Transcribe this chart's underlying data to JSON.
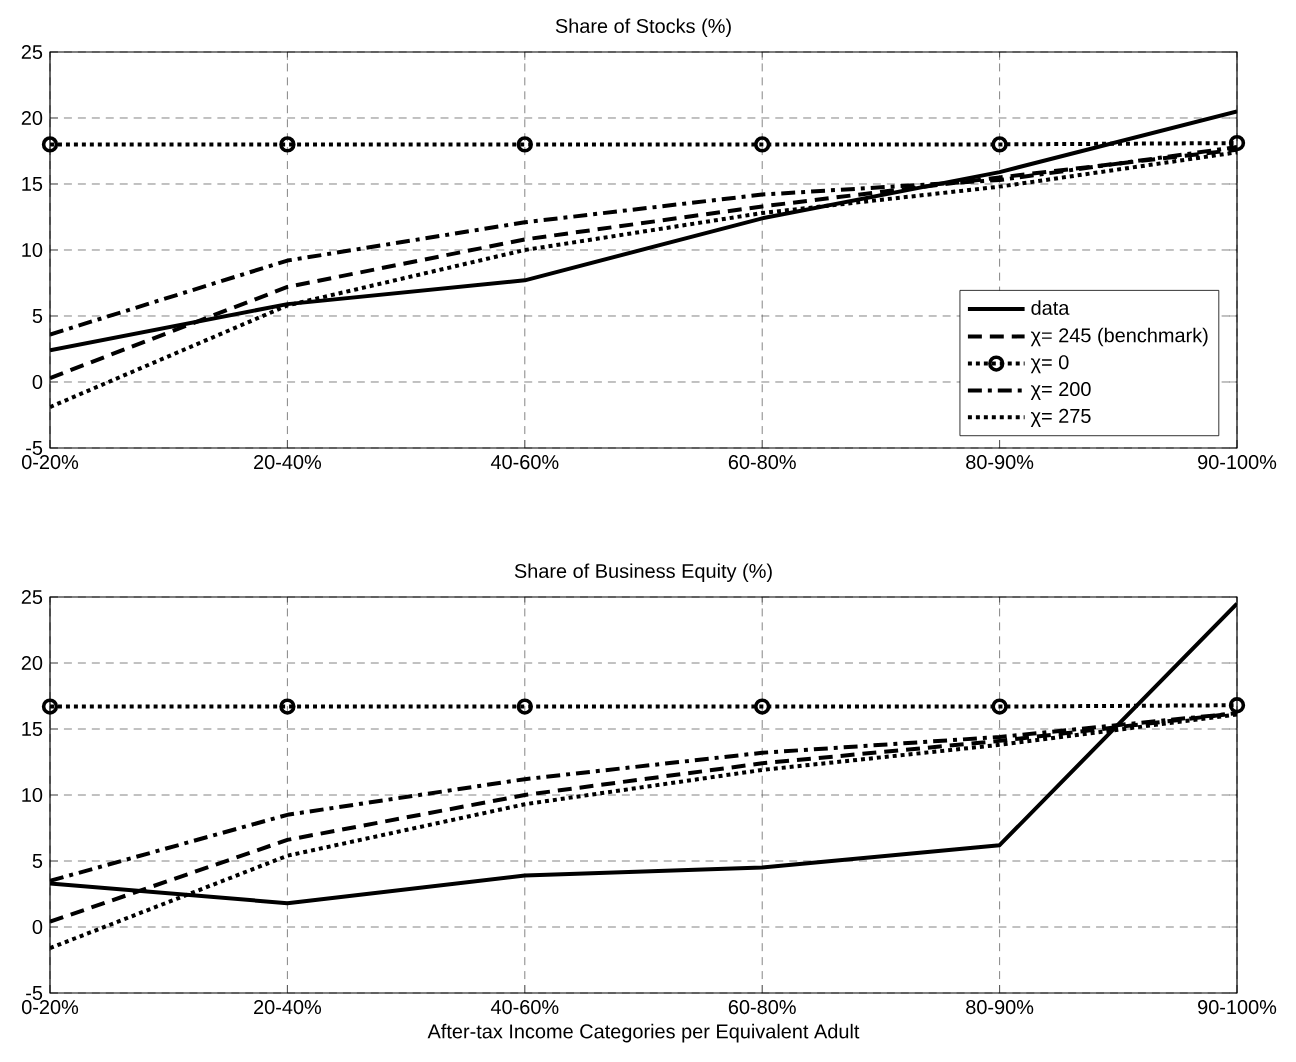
{
  "chart_data": [
    {
      "type": "line",
      "title": "Share of Stocks (%)",
      "categories": [
        "0-20%",
        "20-40%",
        "40-60%",
        "60-80%",
        "80-90%",
        "90-100%"
      ],
      "ylim": [
        -5,
        25
      ],
      "yticks": [
        -5,
        0,
        5,
        10,
        15,
        20,
        25
      ],
      "grid": true,
      "legend": "bottom right",
      "series": [
        {
          "name": "data",
          "color": "#000000",
          "line_style": "solid",
          "values": [
            2.4,
            5.9,
            7.7,
            12.4,
            15.9,
            20.5
          ]
        },
        {
          "name": "χ= 245 (benchmark)",
          "color": "#000000",
          "line_style": "dashed",
          "values": [
            0.3,
            7.2,
            10.8,
            13.3,
            15.5,
            17.6
          ]
        },
        {
          "name": "χ= 0",
          "color": "#000000",
          "line_style": "dotted",
          "marker": "circle",
          "values": [
            18.0,
            18.0,
            18.0,
            18.0,
            18.0,
            18.1
          ]
        },
        {
          "name": "χ= 200",
          "color": "#000000",
          "line_style": "dashdot",
          "values": [
            3.6,
            9.2,
            12.1,
            14.2,
            15.3,
            17.8
          ]
        },
        {
          "name": "χ= 275",
          "color": "#000000",
          "line_style": "dotted",
          "values": [
            -1.9,
            5.8,
            10.0,
            12.8,
            14.8,
            17.4
          ]
        }
      ]
    },
    {
      "type": "line",
      "title": "Share of Business Equity (%)",
      "xlabel": "After-tax Income Categories per Equivalent Adult",
      "categories": [
        "0-20%",
        "20-40%",
        "40-60%",
        "60-80%",
        "80-90%",
        "90-100%"
      ],
      "ylim": [
        -5,
        25
      ],
      "yticks": [
        -5,
        0,
        5,
        10,
        15,
        20,
        25
      ],
      "grid": true,
      "series": [
        {
          "color": "#000000",
          "line_style": "solid",
          "values": [
            3.3,
            1.8,
            3.9,
            4.5,
            6.2,
            24.5
          ]
        },
        {
          "color": "#000000",
          "line_style": "dashed",
          "values": [
            0.4,
            6.6,
            10.0,
            12.4,
            14.1,
            16.2
          ]
        },
        {
          "color": "#000000",
          "line_style": "dotted",
          "marker": "circle",
          "values": [
            16.7,
            16.7,
            16.7,
            16.7,
            16.7,
            16.8
          ]
        },
        {
          "color": "#000000",
          "line_style": "dashdot",
          "values": [
            3.5,
            8.5,
            11.2,
            13.2,
            14.4,
            16.2
          ]
        },
        {
          "color": "#000000",
          "line_style": "dotted",
          "values": [
            -1.6,
            5.4,
            9.3,
            11.9,
            13.8,
            16.1
          ]
        }
      ]
    }
  ]
}
